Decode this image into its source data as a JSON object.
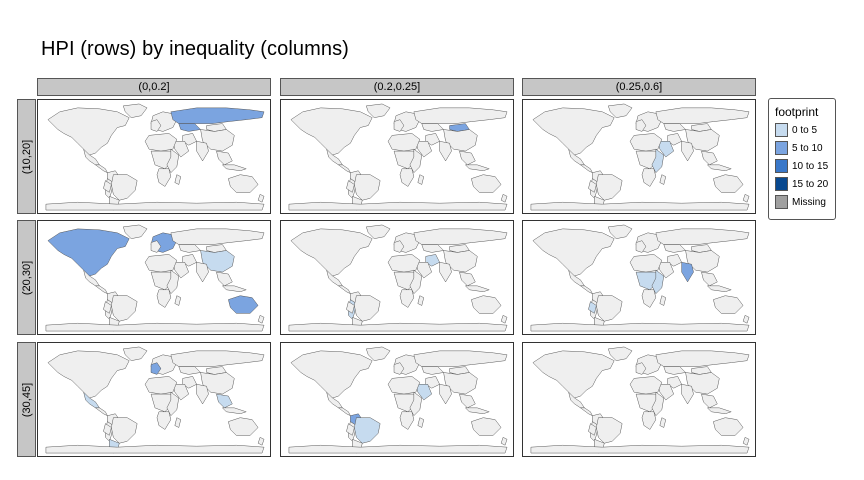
{
  "title": "HPI (rows) by inequality (columns)",
  "columns": [
    "(0,0.2]",
    "(0.2,0.25]",
    "(0.25,0.6]"
  ],
  "rows": [
    "(10,20]",
    "(20,30]",
    "(30,45]"
  ],
  "legend": {
    "title": "footprint",
    "items": [
      {
        "label": "0 to 5",
        "color": "#c6dbef"
      },
      {
        "label": "5 to 10",
        "color": "#7ba4e0"
      },
      {
        "label": "10 to 15",
        "color": "#3a78c9"
      },
      {
        "label": "15 to 20",
        "color": "#08488f"
      },
      {
        "label": "Missing",
        "color": "#a0a0a0"
      }
    ]
  },
  "colors": {
    "land_missing": "#efefef",
    "border": "#555555",
    "strip_bg": "#c6c6c6"
  },
  "panels": [
    {
      "row": "(10,20]",
      "col": "(0,0.2]",
      "highlights": [
        {
          "region": "russia",
          "band": "5 to 10"
        },
        {
          "region": "kazakhstan",
          "band": "5 to 10"
        }
      ]
    },
    {
      "row": "(10,20]",
      "col": "(0.2,0.25]",
      "highlights": [
        {
          "region": "mongolia",
          "band": "5 to 10"
        }
      ]
    },
    {
      "row": "(10,20]",
      "col": "(0.25,0.6]",
      "highlights": [
        {
          "region": "east-africa",
          "band": "0 to 5"
        },
        {
          "region": "arabia",
          "band": "0 to 5"
        }
      ]
    },
    {
      "row": "(20,30]",
      "col": "(0,0.2]",
      "highlights": [
        {
          "region": "north-america",
          "band": "5 to 10"
        },
        {
          "region": "australia",
          "band": "5 to 10"
        },
        {
          "region": "europe",
          "band": "5 to 10"
        },
        {
          "region": "china",
          "band": "0 to 5"
        }
      ]
    },
    {
      "row": "(20,30]",
      "col": "(0.2,0.25]",
      "highlights": [
        {
          "region": "iran",
          "band": "0 to 5"
        },
        {
          "region": "andes",
          "band": "0 to 5"
        }
      ]
    },
    {
      "row": "(20,30]",
      "col": "(0.25,0.6]",
      "highlights": [
        {
          "region": "india",
          "band": "5 to 10"
        },
        {
          "region": "east-africa",
          "band": "0 to 5"
        },
        {
          "region": "central-africa",
          "band": "0 to 5"
        },
        {
          "region": "peru",
          "band": "0 to 5"
        }
      ]
    },
    {
      "row": "(30,45]",
      "col": "(0,0.2]",
      "highlights": [
        {
          "region": "mexico",
          "band": "0 to 5"
        },
        {
          "region": "chile-argentina",
          "band": "0 to 5"
        },
        {
          "region": "western-europe",
          "band": "5 to 10"
        },
        {
          "region": "se-asia",
          "band": "0 to 5"
        }
      ]
    },
    {
      "row": "(30,45]",
      "col": "(0.2,0.25]",
      "highlights": [
        {
          "region": "brazil",
          "band": "0 to 5"
        },
        {
          "region": "colombia",
          "band": "5 to 10"
        },
        {
          "region": "arabia",
          "band": "0 to 5"
        }
      ]
    },
    {
      "row": "(30,45]",
      "col": "(0.25,0.6]",
      "highlights": []
    }
  ]
}
